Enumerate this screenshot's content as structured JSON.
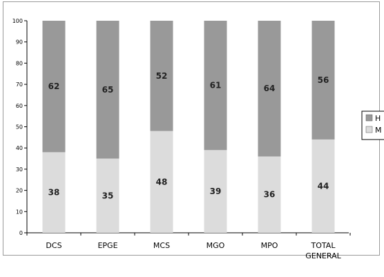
{
  "chart_data": {
    "type": "bar",
    "stacked": true,
    "categories": [
      "DCS",
      "EPGE",
      "MCS",
      "MGO",
      "MPO",
      [
        "TOTAL",
        "GENERAL"
      ]
    ],
    "series": [
      {
        "name": "M",
        "values": [
          38,
          35,
          48,
          39,
          36,
          44
        ],
        "color": "#dcdcdc"
      },
      {
        "name": "H",
        "values": [
          62,
          65,
          52,
          61,
          64,
          56
        ],
        "color": "#999999"
      }
    ],
    "yticks": [
      0,
      10,
      20,
      30,
      40,
      50,
      60,
      70,
      80,
      90,
      100
    ],
    "ylim": [
      0,
      100
    ],
    "grid": false,
    "legend_position": "right",
    "title": "",
    "xlabel": "",
    "ylabel": ""
  }
}
